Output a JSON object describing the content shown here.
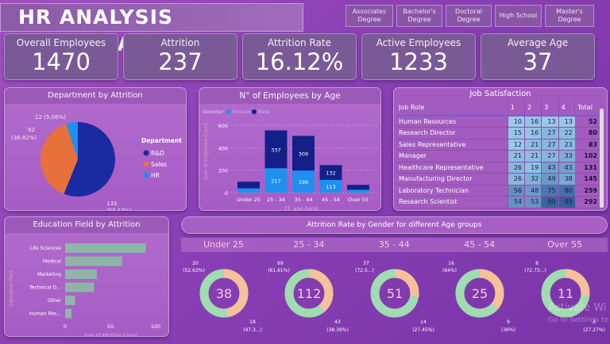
{
  "header": {
    "title": "HR ANALYSIS DASHBOARD",
    "slicers": [
      "Associates Degree",
      "Bachelor's Degree",
      "Doctoral Degree",
      "High School",
      "Master's Degree"
    ]
  },
  "kpis": [
    {
      "label": "Overall Employees",
      "value": "1470"
    },
    {
      "label": "Attrition",
      "value": "237"
    },
    {
      "label": "Attrition Rate",
      "value": "16.12%"
    },
    {
      "label": "Active Employees",
      "value": "1233"
    },
    {
      "label": "Average Age",
      "value": "37"
    }
  ],
  "department": {
    "title": "Department by Attrition",
    "legend_title": "Department",
    "slices": [
      {
        "name": "R&D",
        "value": 133,
        "label": "133",
        "pct": "(56.12%)",
        "color": "#1a2aa0"
      },
      {
        "name": "Sales",
        "value": 92,
        "label": "92",
        "pct": "(38.82%)",
        "color": "#e8703a"
      },
      {
        "name": "HR",
        "value": 12,
        "label": "12 (5.06%)",
        "pct": "",
        "color": "#1e90f0"
      }
    ]
  },
  "chart_data": [
    {
      "type": "bar",
      "title": "N° of Employees by Age",
      "legend_title": "Gender",
      "xlabel": "CF_age band",
      "ylabel": "Sum of Employee Count",
      "ylim": [
        0,
        600
      ],
      "yticks": [
        0,
        200,
        400,
        600
      ],
      "categories": [
        "Under 25",
        "25 - 34",
        "35 - 44",
        "45 - 54",
        "Over 55"
      ],
      "series": [
        {
          "name": "Female",
          "color": "#1e90f0",
          "values": [
            38,
            217,
            196,
            113,
            25
          ]
        },
        {
          "name": "Male",
          "color": "#14208a",
          "values": [
            59,
            337,
            309,
            132,
            44
          ]
        }
      ],
      "data_labels": {
        "Female": [
          "",
          "217",
          "196",
          "113",
          ""
        ],
        "Male": [
          "",
          "337",
          "309",
          "132",
          ""
        ]
      },
      "grid": true,
      "legend": "top-left"
    },
    {
      "type": "bar",
      "orientation": "horizontal",
      "title": "Education Field by Attrition",
      "xlabel": "Sum of Attrition Count",
      "ylabel": "Education Field",
      "xlim": [
        0,
        100
      ],
      "xticks": [
        0,
        50,
        100
      ],
      "categories": [
        "Life Sciences",
        "Medical",
        "Marketing",
        "Technical D...",
        "Other",
        "Human Res..."
      ],
      "values": [
        89,
        63,
        35,
        32,
        11,
        7
      ],
      "color": "#8fb5a8"
    }
  ],
  "job": {
    "title": "Job Satisfaction",
    "headers": [
      "Job Role",
      "1",
      "2",
      "3",
      "4",
      "Total"
    ],
    "rows": [
      [
        "Human Resources",
        10,
        16,
        13,
        13,
        52
      ],
      [
        "Research Director",
        15,
        16,
        27,
        22,
        80
      ],
      [
        "Sales Representative",
        12,
        21,
        27,
        23,
        83
      ],
      [
        "Manager",
        21,
        21,
        27,
        33,
        102
      ],
      [
        "Healthcare Representative",
        26,
        19,
        43,
        43,
        131
      ],
      [
        "Manufacturing Director",
        26,
        32,
        49,
        38,
        145
      ],
      [
        "Laboratory Technician",
        56,
        48,
        75,
        80,
        259
      ],
      [
        "Research Scientist",
        54,
        53,
        90,
        95,
        292
      ]
    ]
  },
  "attrition": {
    "title": "Attrition Rate by Gender for different Age groups",
    "groups": [
      {
        "band": "Under 25",
        "total": "38",
        "green": 20,
        "peach": 18,
        "green_label": "20",
        "green_pct": "(52.63%)",
        "peach_label": "18",
        "peach_pct": "(47.3...)"
      },
      {
        "band": "25 - 34",
        "total": "112",
        "green": 69,
        "peach": 43,
        "green_label": "69",
        "green_pct": "(61.61%)",
        "peach_label": "43",
        "peach_pct": "(38.39%)"
      },
      {
        "band": "35 - 44",
        "total": "51",
        "green": 37,
        "peach": 14,
        "green_label": "37",
        "green_pct": "(72.5...)",
        "peach_label": "14",
        "peach_pct": "(27.45%)"
      },
      {
        "band": "45 - 54",
        "total": "25",
        "green": 16,
        "peach": 9,
        "green_label": "16",
        "green_pct": "(64%)",
        "peach_label": "9",
        "peach_pct": "(36%)"
      },
      {
        "band": "Over 55",
        "total": "11",
        "green": 8,
        "peach": 3,
        "green_label": "8",
        "green_pct": "(72.73...)",
        "peach_label": "3",
        "peach_pct": "(27.27%)"
      }
    ],
    "colors": {
      "green": "#9fdcb0",
      "peach": "#f5c09a"
    }
  },
  "watermark": {
    "line1": "Activate Wi",
    "line2": "Go to Settings to"
  }
}
